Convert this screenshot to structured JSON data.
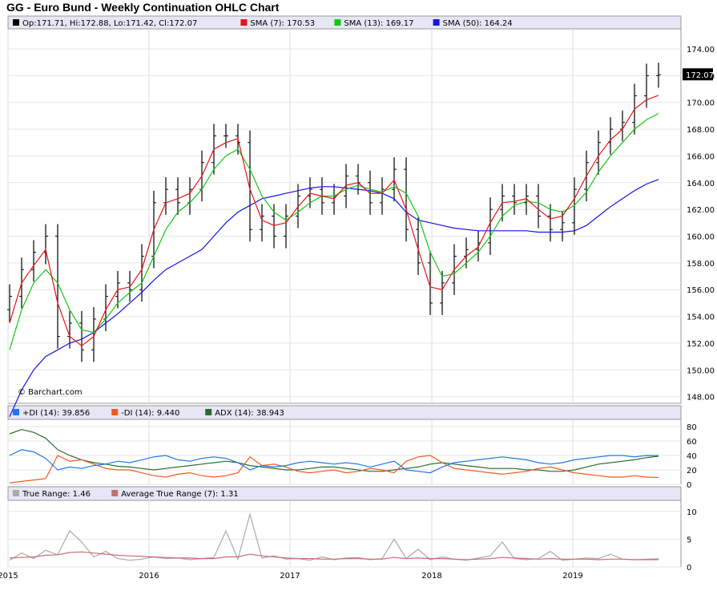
{
  "title": "GG - Euro Bund - Weekly Continuation OHLC Chart",
  "watermark": "© Barchart.com",
  "colors": {
    "sma7": "#e8141b",
    "sma13": "#14c814",
    "sma50": "#1414e6",
    "pdi": "#1e78f0",
    "mdi": "#f05a1e",
    "adx": "#2f6b2f",
    "tr": "#aaaaaa",
    "atr": "#c86e6e",
    "bar": "#000000",
    "panel_header": "#e6e6f5"
  },
  "price_panel": {
    "legend": [
      {
        "label": "Op:171.71, Hi:172.88, Lo:171.42, Cl:172.07",
        "color": "#000000"
      },
      {
        "label": "SMA (7): 170.53",
        "color": "#e8141b"
      },
      {
        "label": "SMA (13): 169.17",
        "color": "#14c814"
      },
      {
        "label": "SMA (50): 164.24",
        "color": "#1414e6"
      }
    ],
    "y_ticks": [
      "148.00",
      "150.00",
      "152.00",
      "154.00",
      "156.00",
      "158.00",
      "160.00",
      "162.00",
      "164.00",
      "166.00",
      "168.00",
      "170.00",
      "172.00",
      "174.00"
    ],
    "last_price": "172.07"
  },
  "dmi_panel": {
    "legend": [
      {
        "label": "+DI (14): 39.856",
        "color": "#1e78f0"
      },
      {
        "label": "-DI (14): 9.440",
        "color": "#f05a1e"
      },
      {
        "label": "ADX (14): 38.943",
        "color": "#2f6b2f"
      }
    ],
    "y_ticks": [
      "0",
      "20",
      "40",
      "60",
      "80"
    ]
  },
  "tr_panel": {
    "legend": [
      {
        "label": "True Range: 1.46",
        "color": "#aaaaaa"
      },
      {
        "label": "Average True Range (7): 1.31",
        "color": "#c86e6e"
      }
    ],
    "y_ticks": [
      "0",
      "5",
      "10"
    ]
  },
  "x_labels": [
    "2015",
    "2016",
    "2017",
    "2018",
    "2019"
  ],
  "chart_data": {
    "type": "line",
    "title": "GG - Euro Bund - Weekly Continuation OHLC Chart",
    "x": [
      "2015-01",
      "2015-02",
      "2015-03",
      "2015-04",
      "2015-05",
      "2015-06",
      "2015-07",
      "2015-08",
      "2015-09",
      "2015-10",
      "2015-11",
      "2015-12",
      "2016-01",
      "2016-02",
      "2016-03",
      "2016-04",
      "2016-05",
      "2016-06",
      "2016-07",
      "2016-08",
      "2016-09",
      "2016-10",
      "2016-11",
      "2016-12",
      "2017-01",
      "2017-02",
      "2017-03",
      "2017-04",
      "2017-05",
      "2017-06",
      "2017-07",
      "2017-08",
      "2017-09",
      "2017-10",
      "2017-11",
      "2017-12",
      "2018-01",
      "2018-02",
      "2018-03",
      "2018-04",
      "2018-05",
      "2018-06",
      "2018-07",
      "2018-08",
      "2018-09",
      "2018-10",
      "2018-11",
      "2018-12",
      "2019-01",
      "2019-02",
      "2019-03",
      "2019-04",
      "2019-05",
      "2019-06",
      "2019-07"
    ],
    "series": [
      {
        "name": "Close",
        "values": [
          155.5,
          157.5,
          158.8,
          160.0,
          152.5,
          153.5,
          151.5,
          153.8,
          155.5,
          156.5,
          156.0,
          158.5,
          162.5,
          163.5,
          162.5,
          163.5,
          165.5,
          167.5,
          167.5,
          167.0,
          160.5,
          161.5,
          160.0,
          161.5,
          163.0,
          163.5,
          162.5,
          163.0,
          164.5,
          164.0,
          162.5,
          163.5,
          165.0,
          160.5,
          158.0,
          155.0,
          156.5,
          158.5,
          159.0,
          159.5,
          162.0,
          163.0,
          162.5,
          163.0,
          161.5,
          160.5,
          161.0,
          163.5,
          165.5,
          167.0,
          168.0,
          168.5,
          170.5,
          172.0,
          172.07
        ]
      },
      {
        "name": "SMA (7)",
        "values": [
          153.5,
          156.5,
          157.8,
          159.0,
          155.0,
          152.5,
          151.8,
          152.5,
          154.5,
          156.0,
          156.2,
          157.5,
          160.5,
          162.5,
          162.8,
          163.2,
          164.5,
          166.5,
          167.0,
          167.3,
          163.5,
          161.2,
          160.8,
          161.0,
          162.2,
          163.2,
          163.0,
          162.8,
          163.8,
          164.0,
          163.2,
          163.2,
          164.2,
          162.0,
          159.0,
          156.2,
          156.0,
          157.5,
          158.5,
          159.2,
          161.0,
          162.5,
          162.6,
          162.8,
          162.0,
          161.3,
          161.5,
          162.8,
          164.5,
          166.0,
          167.2,
          168.0,
          169.5,
          170.2,
          170.53
        ]
      },
      {
        "name": "SMA (13)",
        "values": [
          151.5,
          154.5,
          156.5,
          157.5,
          156.5,
          154.5,
          153.0,
          152.8,
          153.8,
          155.0,
          155.8,
          156.5,
          158.5,
          160.5,
          161.8,
          162.5,
          163.5,
          165.0,
          166.0,
          166.5,
          165.0,
          163.0,
          161.8,
          161.2,
          161.8,
          162.5,
          163.0,
          163.0,
          163.5,
          163.8,
          163.5,
          163.3,
          163.7,
          163.2,
          161.5,
          158.8,
          157.0,
          157.2,
          158.0,
          158.8,
          160.0,
          161.5,
          162.3,
          162.6,
          162.5,
          162.0,
          161.8,
          162.3,
          163.3,
          164.8,
          166.0,
          167.0,
          168.0,
          168.7,
          169.17
        ]
      },
      {
        "name": "SMA (50)",
        "values": [
          146.5,
          148.5,
          150.0,
          151.0,
          151.5,
          152.0,
          152.3,
          152.8,
          153.5,
          154.2,
          155.0,
          155.8,
          156.7,
          157.5,
          158.0,
          158.5,
          159.0,
          160.0,
          161.0,
          161.8,
          162.3,
          162.8,
          163.0,
          163.2,
          163.4,
          163.6,
          163.7,
          163.7,
          163.6,
          163.5,
          163.4,
          163.2,
          162.8,
          161.8,
          161.2,
          161.0,
          160.8,
          160.6,
          160.5,
          160.4,
          160.4,
          160.4,
          160.4,
          160.4,
          160.3,
          160.3,
          160.3,
          160.4,
          160.8,
          161.5,
          162.2,
          162.8,
          163.4,
          163.9,
          164.24
        ]
      },
      {
        "name": "+DI (14)",
        "values": [
          40,
          48,
          45,
          36,
          20,
          24,
          22,
          26,
          28,
          32,
          30,
          34,
          38,
          40,
          34,
          32,
          36,
          38,
          36,
          30,
          20,
          26,
          24,
          26,
          30,
          32,
          30,
          28,
          30,
          28,
          24,
          28,
          32,
          20,
          18,
          16,
          24,
          30,
          32,
          34,
          36,
          38,
          36,
          34,
          30,
          28,
          30,
          34,
          36,
          38,
          40,
          40,
          38,
          40,
          39.9
        ]
      },
      {
        "name": "-DI (14)",
        "values": [
          2,
          4,
          6,
          8,
          40,
          32,
          34,
          28,
          22,
          20,
          20,
          16,
          12,
          10,
          14,
          16,
          12,
          10,
          12,
          16,
          38,
          26,
          28,
          24,
          18,
          16,
          18,
          20,
          16,
          18,
          22,
          20,
          16,
          32,
          38,
          40,
          30,
          22,
          20,
          18,
          16,
          14,
          16,
          18,
          22,
          24,
          20,
          16,
          14,
          12,
          10,
          10,
          12,
          10,
          9.44
        ]
      },
      {
        "name": "ADX (14)",
        "values": [
          70,
          76,
          72,
          64,
          48,
          40,
          34,
          30,
          28,
          25,
          24,
          22,
          20,
          22,
          24,
          26,
          28,
          30,
          32,
          30,
          26,
          24,
          22,
          20,
          20,
          22,
          24,
          24,
          22,
          20,
          18,
          18,
          20,
          22,
          24,
          28,
          30,
          28,
          26,
          24,
          22,
          22,
          22,
          20,
          20,
          18,
          18,
          20,
          24,
          28,
          30,
          32,
          34,
          37,
          38.9
        ]
      },
      {
        "name": "True Range",
        "values": [
          1.2,
          2.5,
          1.5,
          3.0,
          2.2,
          6.5,
          4.5,
          1.8,
          2.8,
          1.5,
          1.2,
          1.4,
          1.8,
          1.5,
          1.6,
          1.3,
          1.5,
          1.7,
          6.5,
          1.4,
          9.5,
          1.6,
          2.0,
          1.4,
          1.5,
          1.2,
          1.8,
          1.3,
          1.6,
          1.7,
          1.3,
          1.5,
          5.0,
          1.5,
          3.2,
          1.3,
          1.8,
          1.4,
          1.2,
          1.6,
          2.0,
          4.5,
          1.5,
          1.3,
          1.5,
          2.8,
          1.2,
          1.4,
          1.6,
          1.5,
          2.3,
          1.4,
          1.3,
          1.4,
          1.46
        ]
      },
      {
        "name": "Average True Range (7)",
        "values": [
          1.6,
          1.7,
          1.8,
          2.1,
          2.2,
          2.6,
          2.7,
          2.5,
          2.3,
          2.1,
          2.0,
          1.9,
          1.8,
          1.7,
          1.6,
          1.6,
          1.5,
          1.5,
          1.8,
          1.8,
          2.3,
          2.0,
          1.8,
          1.6,
          1.5,
          1.5,
          1.4,
          1.4,
          1.5,
          1.5,
          1.4,
          1.4,
          1.7,
          1.5,
          1.6,
          1.5,
          1.5,
          1.4,
          1.3,
          1.4,
          1.5,
          1.7,
          1.6,
          1.5,
          1.4,
          1.5,
          1.4,
          1.4,
          1.4,
          1.3,
          1.4,
          1.4,
          1.3,
          1.3,
          1.31
        ]
      }
    ],
    "ylim_price": [
      147.5,
      175.5
    ],
    "ylim_dmi": [
      0,
      90
    ],
    "ylim_tr": [
      0,
      12
    ],
    "x_tick_labels": [
      "2015",
      "2016",
      "2017",
      "2018",
      "2019"
    ],
    "grid": true,
    "legend": "top-left"
  }
}
